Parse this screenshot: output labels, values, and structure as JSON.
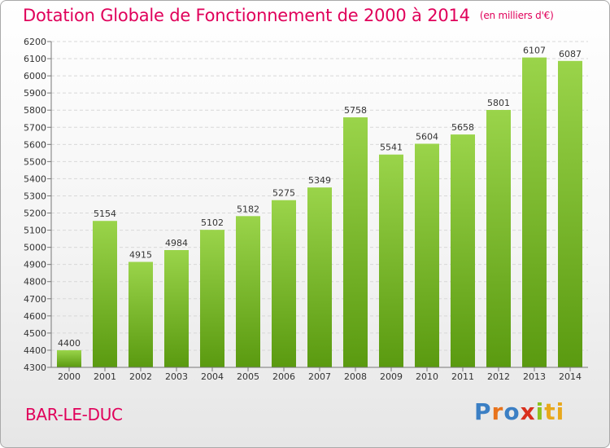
{
  "title": "Dotation Globale de Fonctionnement de 2000 à 2014",
  "unit_note": "(en milliers d'€)",
  "city": "BAR-LE-DUC",
  "brand": {
    "text": "Proxiti",
    "letters": [
      "P",
      "r",
      "o",
      "x",
      "i",
      "ti"
    ]
  },
  "colors": {
    "title": "#e0005a",
    "bar_top": "#9ad44a",
    "bar_bottom": "#5a9a10",
    "grid": "#d8d8d8"
  },
  "chart_data": {
    "type": "bar",
    "categories": [
      "2000",
      "2001",
      "2002",
      "2003",
      "2004",
      "2005",
      "2006",
      "2007",
      "2008",
      "2009",
      "2010",
      "2011",
      "2012",
      "2013",
      "2014"
    ],
    "values": [
      4400,
      5154,
      4915,
      4984,
      5102,
      5182,
      5275,
      5349,
      5758,
      5541,
      5604,
      5658,
      5801,
      6107,
      6087
    ],
    "ylim": [
      4300,
      6200
    ],
    "yticks": [
      4300,
      4400,
      4500,
      4600,
      4700,
      4800,
      4900,
      5000,
      5100,
      5200,
      5300,
      5400,
      5500,
      5600,
      5700,
      5800,
      5900,
      6000,
      6100,
      6200
    ],
    "grid": true,
    "data_labels": true,
    "title": "Dotation Globale de Fonctionnement de 2000 à 2014",
    "xlabel": "",
    "ylabel": ""
  }
}
